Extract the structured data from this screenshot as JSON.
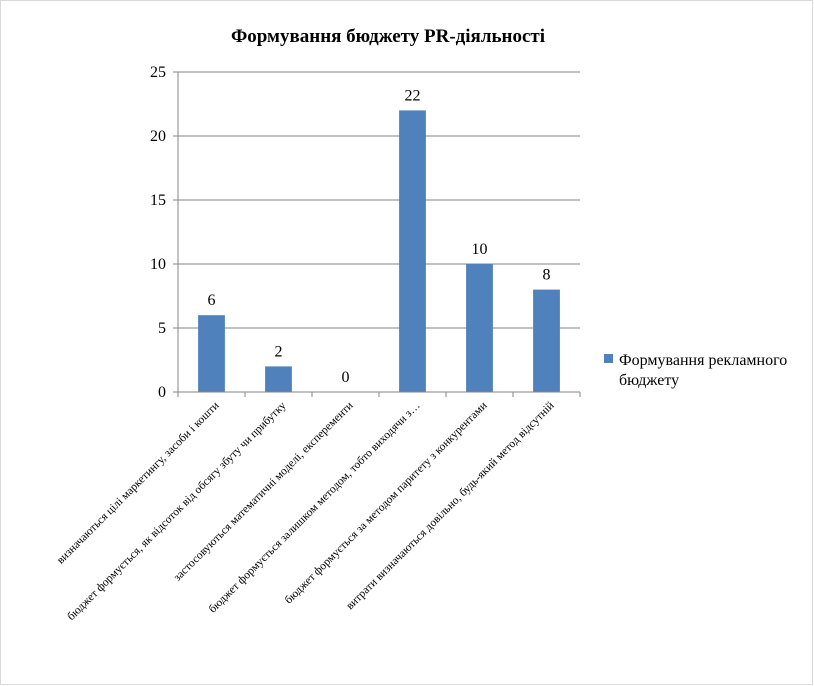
{
  "chart_data": {
    "type": "bar",
    "title": "Формування бюджету PR-діяльності",
    "categories": [
      "визначаються цілі маркетингу, засоби і кошти",
      "бюджет формується, як відсоток від обсягу збуту чи прибутку",
      "застосовуються математичні моделі, експеременти",
      "бюджет формується залишком методом, тобто виходячи з…",
      "бюджет формується за методом паритету з конкурентами",
      "витрати визначаються довільно, будь-який метод відсутній"
    ],
    "series": [
      {
        "name": "Формування рекламного бюджету",
        "values": [
          6,
          2,
          0,
          22,
          10,
          8
        ],
        "color": "#4F81BD"
      }
    ],
    "y_ticks": [
      "0",
      "5",
      "10",
      "15",
      "20",
      "25"
    ],
    "ylim": [
      0,
      25
    ],
    "xlabel": "",
    "ylabel": "",
    "grid": true,
    "data_labels": true,
    "legend_position": "right",
    "legend_lines": [
      "Формування рекламного",
      "бюджету"
    ]
  }
}
